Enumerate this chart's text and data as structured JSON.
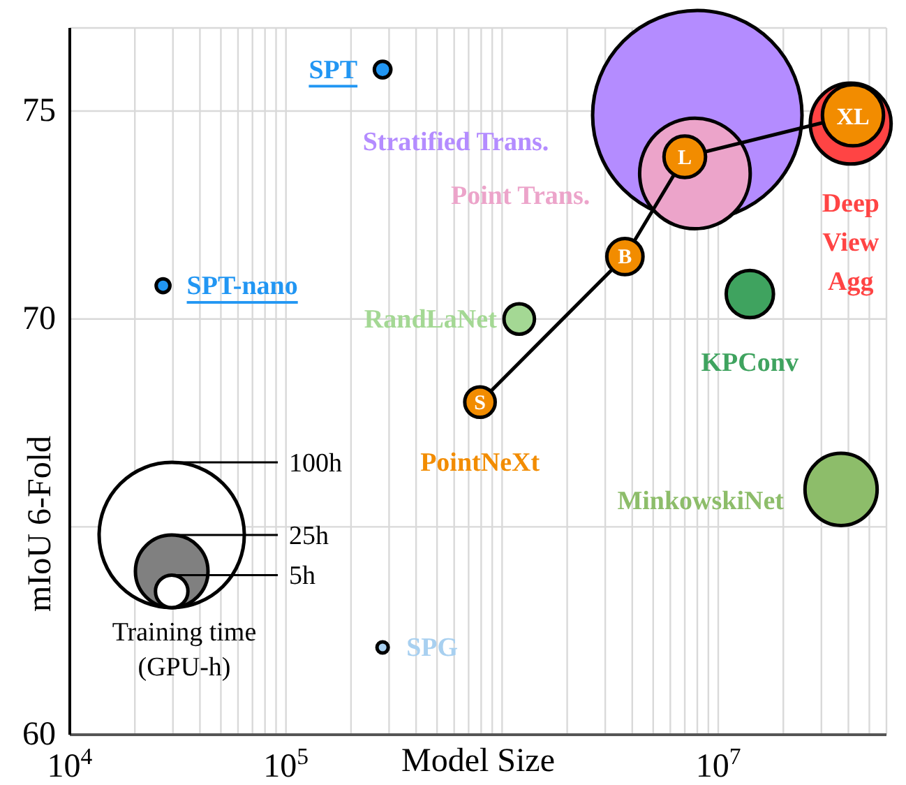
{
  "chart_data": {
    "type": "bubble",
    "xlabel": "Model Size",
    "ylabel": "mIoU 6-Fold",
    "legend_title": "Training time (GPU-h)",
    "log": "x",
    "grid": true,
    "legend": false,
    "xlim": [
      10000,
      60000000
    ],
    "xticks": [
      {
        "value": 10000,
        "label": "10$^{4}$"
      },
      {
        "value": 20000,
        "label": null
      },
      {
        "value": 30000,
        "label": null
      },
      {
        "value": 40000,
        "label": null
      },
      {
        "value": 50000,
        "label": null
      },
      {
        "value": 60000,
        "label": null
      },
      {
        "value": 70000,
        "label": null
      },
      {
        "value": 80000,
        "label": null
      },
      {
        "value": 90000,
        "label": null
      },
      {
        "value": 100000,
        "label": "10$^{5}$"
      },
      {
        "value": 200000,
        "label": null
      },
      {
        "value": 300000,
        "label": null
      },
      {
        "value": 400000,
        "label": null
      },
      {
        "value": 500000,
        "label": null
      },
      {
        "value": 600000,
        "label": null
      },
      {
        "value": 700000,
        "label": null
      },
      {
        "value": 800000,
        "label": null
      },
      {
        "value": 900000,
        "label": null
      },
      {
        "value": 1000000,
        "label": null
      },
      {
        "value": 2000000,
        "label": null
      },
      {
        "value": 3000000,
        "label": null
      },
      {
        "value": 4000000,
        "label": null
      },
      {
        "value": 5000000,
        "label": null
      },
      {
        "value": 6000000,
        "label": null
      },
      {
        "value": 7000000,
        "label": null
      },
      {
        "value": 8000000,
        "label": null
      },
      {
        "value": 9000000,
        "label": null
      },
      {
        "value": 10000000,
        "label": "10$^{7}$"
      },
      {
        "value": 20000000,
        "label": null
      },
      {
        "value": 30000000,
        "label": null
      },
      {
        "value": 40000000,
        "label": null
      },
      {
        "value": 50000000,
        "label": null
      },
      {
        "value": 60000000,
        "label": null
      }
    ],
    "ylim": [
      60,
      77
    ],
    "yticks": [
      60,
      {
        "value": 65,
        "label": null
      },
      70,
      75
    ],
    "size_legend": [
      {
        "value": 5,
        "label": "5h"
      },
      {
        "value": 25,
        "label": "25h"
      },
      {
        "value": 100,
        "label": "100h"
      }
    ],
    "series": [
      {
        "name": "SPT",
        "color": "#2196f3",
        "x": [
          280000
        ],
        "values": [
          76.0
        ],
        "sizes": [
          1.3
        ]
      },
      {
        "name": "SPT-nano",
        "color": "#2196f3",
        "x": [
          27000
        ],
        "values": [
          70.8
        ],
        "sizes": [
          0.9
        ]
      },
      {
        "name": "SPG",
        "color": "#a8d0f0",
        "x": [
          280000
        ],
        "values": [
          62.1
        ],
        "sizes": [
          0.6
        ]
      },
      {
        "name": "RandLaNet",
        "color": "#a4d894",
        "x": [
          1200000
        ],
        "values": [
          70.0
        ],
        "sizes": [
          4.4
        ]
      },
      {
        "name": "KPConv",
        "color": "#3fa35f",
        "x": [
          14000000
        ],
        "values": [
          70.6
        ],
        "sizes": [
          10.6
        ]
      },
      {
        "name": "MinkowskiNet",
        "color": "#8dbd6a",
        "x": [
          37000000
        ],
        "values": [
          65.9
        ],
        "sizes": [
          24.7
        ]
      },
      {
        "name": "Stratified Trans.",
        "color": "#b48cff",
        "x": [
          8000000
        ],
        "values": [
          74.9
        ],
        "sizes": [
          208
        ]
      },
      {
        "name": "Point Trans.",
        "color": "#eca4ca",
        "x": [
          7800000
        ],
        "values": [
          73.5
        ],
        "sizes": [
          58
        ]
      },
      {
        "name": "Deep View Agg",
        "color": "#ff4444",
        "x": [
          41000000
        ],
        "values": [
          74.7
        ],
        "sizes": [
          31
        ]
      },
      {
        "name": "PointNeXt",
        "color": "#f28c00",
        "x": [
          790000,
          3700000,
          7000000,
          42000000
        ],
        "values": [
          68.0,
          71.5,
          73.9,
          74.9
        ],
        "sizes": [
          4.4,
          6.2,
          8.2,
          17.7
        ]
      }
    ],
    "annotations": [
      {
        "text": "S",
        "x": 790000,
        "y": 68.0
      },
      {
        "text": "B",
        "x": 3700000,
        "y": 71.5
      },
      {
        "text": "L",
        "x": 7000000,
        "y": 73.9
      },
      {
        "text": "XL",
        "x": 42000000,
        "y": 74.9
      }
    ]
  }
}
